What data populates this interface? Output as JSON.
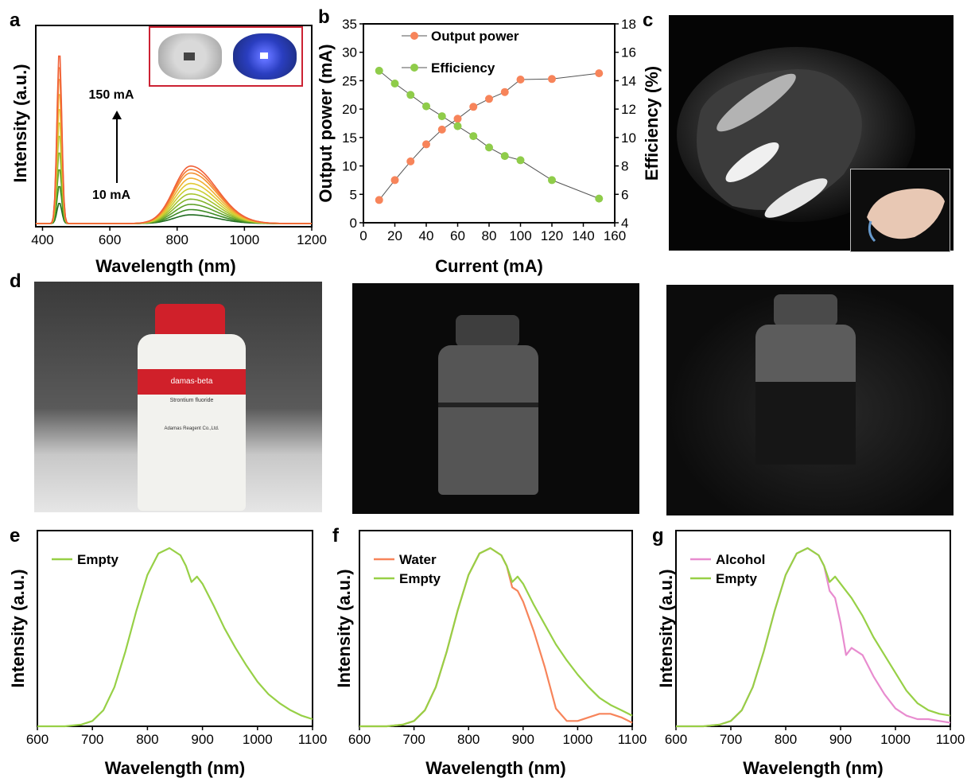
{
  "panels": {
    "a": "a",
    "b": "b",
    "c": "c",
    "d": "d",
    "e": "e",
    "f": "f",
    "g": "g"
  },
  "colors": {
    "orange": "#f7845a",
    "green_marker": "#8fcc4a",
    "empty_green": "#97d046",
    "water_orange": "#f7845a",
    "alcohol_pink": "#e88ccf",
    "inset_border": "#cc2233"
  },
  "panel_a_labels": {
    "top_current": "150 mA",
    "bottom_current": "10 mA"
  },
  "photos": {
    "c_description_icon": "hand-nir-image",
    "d_bottle_label_brand": "damas-beta",
    "d_bottle_label_text": "Strontium fluoride",
    "d_bottle_label_company": "Adamas Reagent Co.,Ltd."
  },
  "chart_data": [
    {
      "id": "a",
      "type": "line",
      "xlabel": "Wavelength (nm)",
      "ylabel": "Intensity (a.u.)",
      "xlim": [
        380,
        1200
      ],
      "xticks": [
        400,
        600,
        800,
        1000,
        1200
      ],
      "series_count": 11,
      "peak_blue_nm": 450,
      "peak_nir_nm": 840,
      "blue_peak_rel": [
        0.12,
        0.22,
        0.32,
        0.42,
        0.52,
        0.6,
        0.68,
        0.77,
        0.86,
        0.93,
        1.0
      ],
      "nir_peak_rel": [
        0.05,
        0.08,
        0.11,
        0.14,
        0.17,
        0.2,
        0.23,
        0.26,
        0.29,
        0.31,
        0.33
      ]
    },
    {
      "id": "b",
      "type": "line",
      "xlabel": "Current (mA)",
      "ylabel": "Output power (mA)",
      "y2label": "Efficiency (%)",
      "xlim": [
        0,
        160
      ],
      "ylim": [
        0,
        35
      ],
      "y2lim": [
        4,
        18
      ],
      "xticks": [
        0,
        20,
        40,
        60,
        80,
        100,
        120,
        140,
        160
      ],
      "yticks": [
        0,
        5,
        10,
        15,
        20,
        25,
        30,
        35
      ],
      "y2ticks": [
        4,
        6,
        8,
        10,
        12,
        14,
        16,
        18
      ],
      "x": [
        10,
        20,
        30,
        40,
        50,
        60,
        70,
        80,
        90,
        100,
        120,
        150
      ],
      "series": [
        {
          "name": "Output power",
          "axis": "left",
          "values": [
            4.0,
            7.5,
            10.8,
            13.8,
            16.4,
            18.3,
            20.4,
            21.8,
            23.0,
            25.2,
            25.3,
            26.3
          ]
        },
        {
          "name": "Efficiency",
          "axis": "right",
          "values": [
            14.7,
            13.8,
            13.0,
            12.2,
            11.5,
            10.8,
            10.1,
            9.3,
            8.7,
            8.4,
            7.0,
            5.7
          ]
        }
      ]
    },
    {
      "id": "e",
      "type": "line",
      "xlabel": "Wavelength (nm)",
      "ylabel": "Intensity (a.u.)",
      "xlim": [
        600,
        1100
      ],
      "xticks": [
        600,
        700,
        800,
        900,
        1000,
        1100
      ],
      "x": [
        600,
        650,
        680,
        700,
        720,
        740,
        760,
        780,
        800,
        820,
        840,
        860,
        870,
        880,
        890,
        900,
        920,
        940,
        960,
        980,
        1000,
        1020,
        1040,
        1060,
        1080,
        1100
      ],
      "series": [
        {
          "name": "Empty",
          "values": [
            0.0,
            0.0,
            0.01,
            0.03,
            0.09,
            0.22,
            0.42,
            0.65,
            0.85,
            0.97,
            1.0,
            0.96,
            0.9,
            0.81,
            0.84,
            0.8,
            0.68,
            0.55,
            0.44,
            0.34,
            0.25,
            0.18,
            0.13,
            0.09,
            0.06,
            0.04
          ]
        }
      ]
    },
    {
      "id": "f",
      "type": "line",
      "xlabel": "Wavelength (nm)",
      "ylabel": "Intensity (a.u.)",
      "xlim": [
        600,
        1100
      ],
      "xticks": [
        600,
        700,
        800,
        900,
        1000,
        1100
      ],
      "x": [
        600,
        650,
        680,
        700,
        720,
        740,
        760,
        780,
        800,
        820,
        840,
        860,
        870,
        880,
        890,
        900,
        920,
        940,
        960,
        980,
        1000,
        1020,
        1040,
        1060,
        1080,
        1100
      ],
      "series": [
        {
          "name": "Water",
          "values": [
            0.0,
            0.0,
            0.01,
            0.03,
            0.09,
            0.22,
            0.42,
            0.65,
            0.85,
            0.97,
            1.0,
            0.96,
            0.9,
            0.78,
            0.76,
            0.7,
            0.53,
            0.33,
            0.1,
            0.03,
            0.03,
            0.05,
            0.07,
            0.07,
            0.05,
            0.02
          ]
        },
        {
          "name": "Empty",
          "values": [
            0.0,
            0.0,
            0.01,
            0.03,
            0.09,
            0.22,
            0.42,
            0.65,
            0.85,
            0.97,
            1.0,
            0.96,
            0.9,
            0.81,
            0.84,
            0.8,
            0.68,
            0.57,
            0.46,
            0.37,
            0.29,
            0.22,
            0.16,
            0.12,
            0.09,
            0.06
          ]
        }
      ]
    },
    {
      "id": "g",
      "type": "line",
      "xlabel": "Wavelength (nm)",
      "ylabel": "Intensity (a.u.)",
      "xlim": [
        600,
        1100
      ],
      "xticks": [
        600,
        700,
        800,
        900,
        1000,
        1100
      ],
      "x": [
        600,
        650,
        680,
        700,
        720,
        740,
        760,
        780,
        800,
        820,
        840,
        860,
        870,
        880,
        890,
        900,
        910,
        920,
        940,
        960,
        980,
        1000,
        1020,
        1040,
        1060,
        1080,
        1100
      ],
      "series": [
        {
          "name": "Alcohol",
          "values": [
            0.0,
            0.0,
            0.01,
            0.03,
            0.09,
            0.22,
            0.42,
            0.65,
            0.85,
            0.97,
            1.0,
            0.96,
            0.9,
            0.76,
            0.72,
            0.58,
            0.4,
            0.44,
            0.4,
            0.28,
            0.18,
            0.1,
            0.06,
            0.04,
            0.04,
            0.03,
            0.02
          ]
        },
        {
          "name": "Empty",
          "values": [
            0.0,
            0.0,
            0.01,
            0.03,
            0.09,
            0.22,
            0.42,
            0.65,
            0.85,
            0.97,
            1.0,
            0.96,
            0.9,
            0.81,
            0.84,
            0.8,
            0.76,
            0.72,
            0.62,
            0.5,
            0.4,
            0.3,
            0.2,
            0.13,
            0.09,
            0.07,
            0.06
          ]
        }
      ]
    }
  ]
}
